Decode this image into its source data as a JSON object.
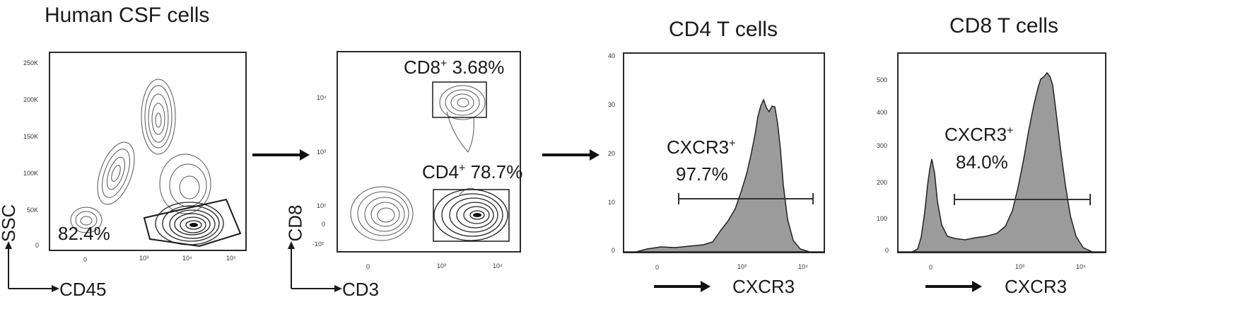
{
  "panels": [
    {
      "title": "Human CSF cells",
      "xlabel": "CD45",
      "ylabel": "SSC",
      "y_ticks": [
        "250K",
        "200K",
        "150K",
        "100K",
        "50K",
        "0"
      ],
      "x_ticks": [
        "0",
        "10³",
        "10⁴",
        "10⁵"
      ],
      "gate_label": "82.4%"
    },
    {
      "title": "",
      "xlabel": "CD3",
      "ylabel": "CD8",
      "y_ticks": [
        "10⁴",
        "10³",
        "10²",
        "0",
        "-10²"
      ],
      "x_ticks": [
        "0",
        "10³",
        "10⁴"
      ],
      "gates": [
        {
          "name": "CD8",
          "sup": "+",
          "value": "3.68%"
        },
        {
          "name": "CD4",
          "sup": "+",
          "value": "78.7%"
        }
      ]
    },
    {
      "title": "CD4 T cells",
      "xlabel": "CXCR3",
      "y_ticks": [
        "40",
        "30",
        "20",
        "10",
        "0"
      ],
      "x_ticks": [
        "0",
        "10³",
        "10⁴"
      ],
      "gate_name": "CXCR3",
      "gate_sup": "+",
      "gate_value": "97.7%"
    },
    {
      "title": "CD8 T cells",
      "xlabel": "CXCR3",
      "y_ticks": [
        "500",
        "400",
        "300",
        "200",
        "100",
        "0"
      ],
      "x_ticks": [
        "0",
        "10³",
        "10⁴"
      ],
      "gate_name": "CXCR3",
      "gate_sup": "+",
      "gate_value": "84.0%"
    }
  ],
  "chart_data": [
    {
      "type": "scatter",
      "title": "Human CSF cells",
      "xlabel": "CD45",
      "ylabel": "SSC",
      "ylim": [
        0,
        250000
      ],
      "x_scale": "biexponential",
      "gates": [
        {
          "label": "82.4%",
          "value": 82.4
        }
      ]
    },
    {
      "type": "scatter",
      "title": "",
      "xlabel": "CD3",
      "ylabel": "CD8",
      "x_scale": "biexponential",
      "y_scale": "biexponential",
      "gates": [
        {
          "label": "CD8+ 3.68%",
          "value": 3.68
        },
        {
          "label": "CD4+ 78.7%",
          "value": 78.7
        }
      ]
    },
    {
      "type": "area",
      "title": "CD4 T cells",
      "xlabel": "CXCR3",
      "ylim": [
        0,
        40
      ],
      "x_scale": "biexponential",
      "gates": [
        {
          "label": "CXCR3+ 97.7%",
          "value": 97.7
        }
      ]
    },
    {
      "type": "area",
      "title": "CD8 T cells",
      "xlabel": "CXCR3",
      "ylim": [
        0,
        500
      ],
      "x_scale": "biexponential",
      "gates": [
        {
          "label": "CXCR3+ 84.0%",
          "value": 84.0
        }
      ]
    }
  ]
}
